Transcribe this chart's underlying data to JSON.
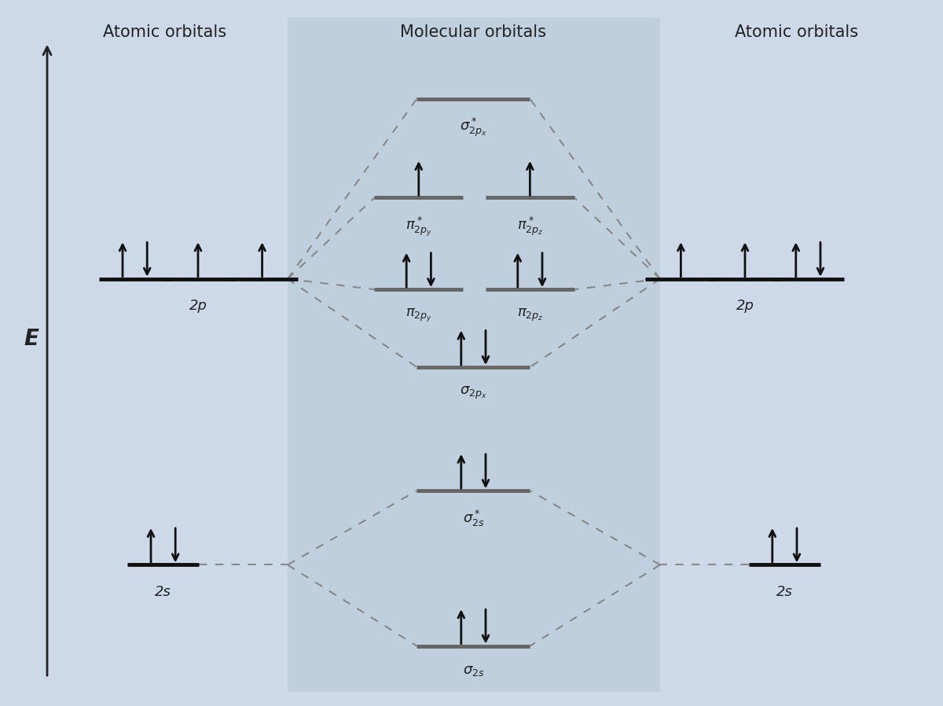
{
  "bg_color": "#cdd9e8",
  "mo_box_color": "#bfcfde",
  "title_mo": "Molecular orbitals",
  "title_ao_left": "Atomic orbitals",
  "title_ao_right": "Atomic orbitals",
  "energy_label": "E",
  "dashed_color": "#888888",
  "bar_color_mo": "#666666",
  "bar_color_at": "#111111",
  "text_color": "#222222",
  "arrow_color": "#111111"
}
